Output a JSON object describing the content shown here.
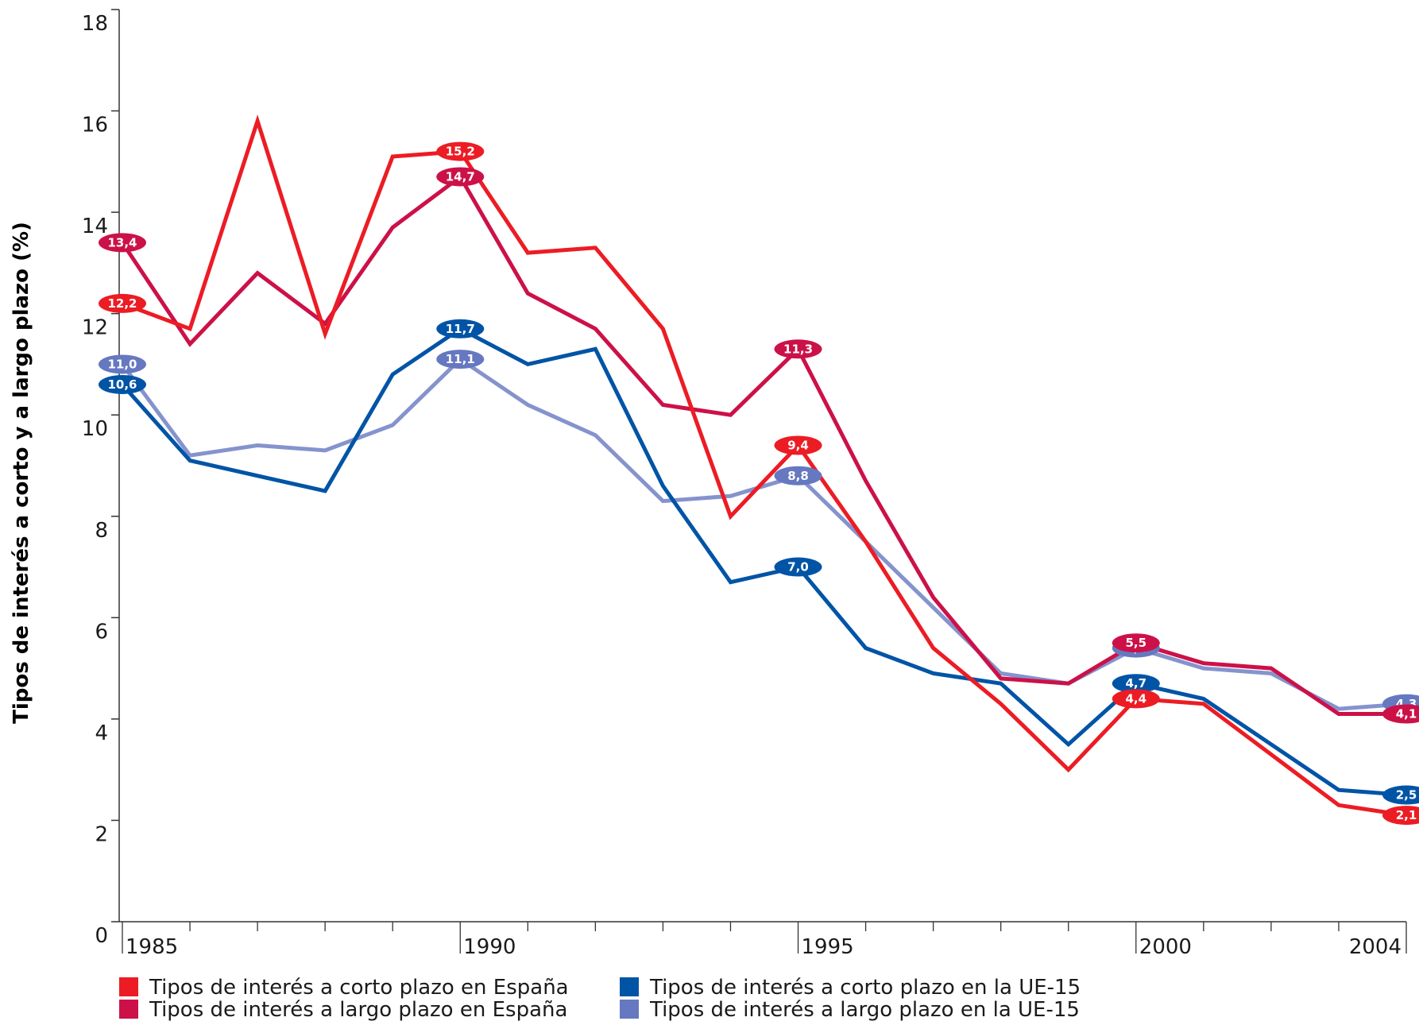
{
  "chart_data": {
    "type": "line",
    "ylabel": "Tipos de interés a corto y a largo plazo (%)",
    "xlabel": "",
    "ylim": [
      0,
      18
    ],
    "xlim": [
      1985,
      2004
    ],
    "yticks": [
      0,
      2,
      4,
      6,
      8,
      10,
      12,
      14,
      16,
      18
    ],
    "xticks": [
      1985,
      1990,
      1995,
      2000,
      2004
    ],
    "legend_position": "bottom",
    "x": [
      1985,
      1986,
      1987,
      1988,
      1989,
      1990,
      1991,
      1992,
      1993,
      1994,
      1995,
      1996,
      1997,
      1998,
      1999,
      2000,
      2001,
      2002,
      2003,
      2004
    ],
    "series": [
      {
        "name": "Tipos de interés a corto plazo en España",
        "color": "#ec1c24",
        "values": [
          12.2,
          11.7,
          15.8,
          11.6,
          15.1,
          15.2,
          13.2,
          13.3,
          11.7,
          8.0,
          9.4,
          7.5,
          5.4,
          4.3,
          3.0,
          4.4,
          4.3,
          3.3,
          2.3,
          2.1
        ],
        "labels": {
          "0": "12,2",
          "5": "15,2",
          "10": "9,4",
          "15": "4,4",
          "19": "2,1"
        }
      },
      {
        "name": "Tipos de interés a largo plazo en España",
        "color": "#cc1148",
        "values": [
          13.4,
          11.4,
          12.8,
          11.8,
          13.7,
          14.7,
          12.4,
          11.7,
          10.2,
          10.0,
          11.3,
          8.7,
          6.4,
          4.8,
          4.7,
          5.5,
          5.1,
          5.0,
          4.1,
          4.1
        ],
        "labels": {
          "0": "13,4",
          "5": "14,7",
          "10": "11,3",
          "15": "5,5",
          "19": "4,1"
        }
      },
      {
        "name": "Tipos de interés a corto plazo en la UE-15",
        "color": "#0054a6",
        "values": [
          10.6,
          9.1,
          8.8,
          8.5,
          10.8,
          11.7,
          11.0,
          11.3,
          8.6,
          6.7,
          7.0,
          5.4,
          4.9,
          4.7,
          3.5,
          4.7,
          4.4,
          3.5,
          2.6,
          2.5
        ],
        "labels": {
          "0": "10,6",
          "5": "11,7",
          "10": "7,0",
          "15": "4,7",
          "19": "2,5"
        }
      },
      {
        "name": "Tipos de interés a largo plazo en la UE-15",
        "color": "#8593cd",
        "badge_color": "#6678c0",
        "values": [
          11.0,
          9.2,
          9.4,
          9.3,
          9.8,
          11.1,
          10.2,
          9.6,
          8.3,
          8.4,
          8.8,
          7.5,
          6.2,
          4.9,
          4.7,
          5.4,
          5.0,
          4.9,
          4.2,
          4.3
        ],
        "labels": {
          "0": "11,0",
          "5": "11,1",
          "10": "8,8",
          "15": "5,4",
          "19": "4,3"
        }
      }
    ]
  }
}
